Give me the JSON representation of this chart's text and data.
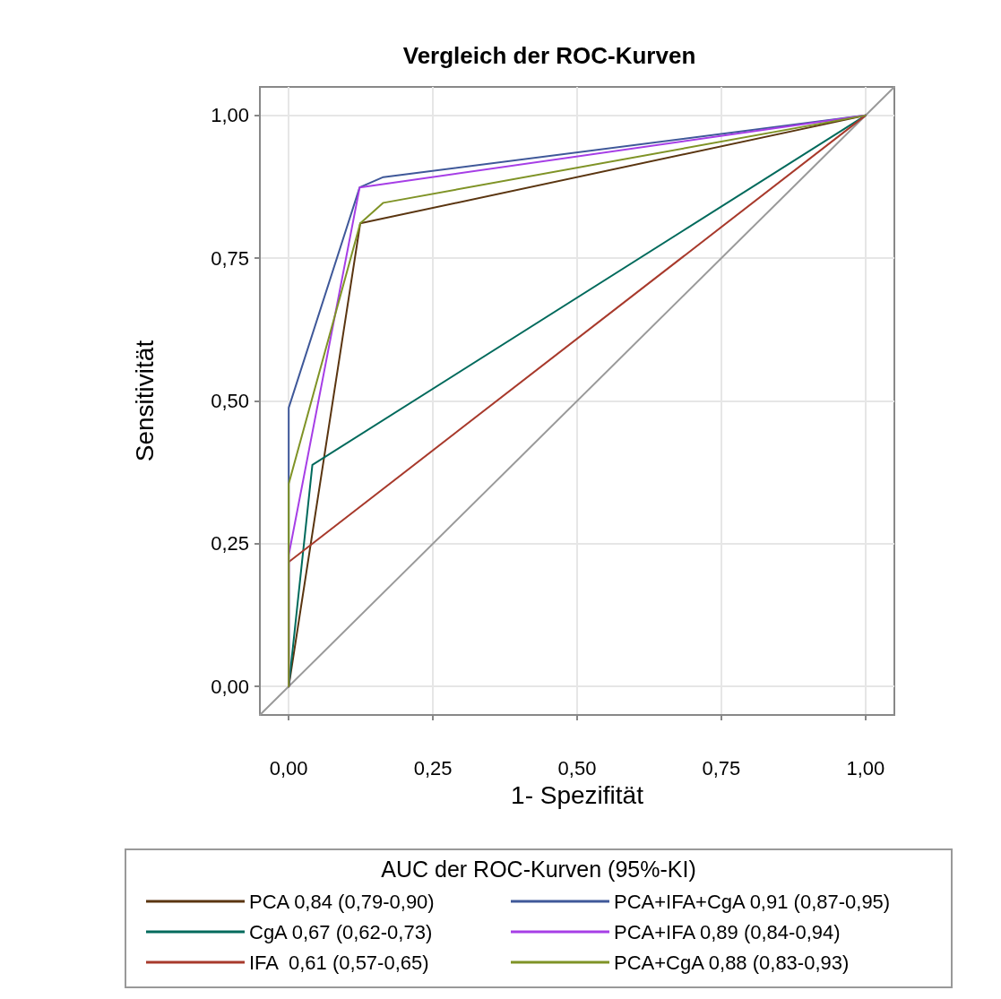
{
  "chart_data": {
    "type": "line",
    "title": "Vergleich der ROC-Kurven",
    "xlabel": "1- Spezifität",
    "ylabel": "Sensitivität",
    "legend_title": "AUC der ROC-Kurven (95%-KI)",
    "xlim": [
      -0.05,
      1.05
    ],
    "ylim": [
      -0.05,
      1.05
    ],
    "xticks": [
      {
        "value": 0,
        "label": "0,00"
      },
      {
        "value": 0.25,
        "label": "0,25"
      },
      {
        "value": 0.5,
        "label": "0,50"
      },
      {
        "value": 0.75,
        "label": "0,75"
      },
      {
        "value": 1,
        "label": "1,00"
      }
    ],
    "yticks": [
      {
        "value": 0,
        "label": "0,00"
      },
      {
        "value": 0.25,
        "label": "0,25"
      },
      {
        "value": 0.5,
        "label": "0,50"
      },
      {
        "value": 0.75,
        "label": "0,75"
      },
      {
        "value": 1,
        "label": "1,00"
      }
    ],
    "grid": true,
    "legend": "bottom",
    "marker": "none",
    "line_style": "solid",
    "series": [
      {
        "name": "PCA 0,84 (0,79-0,90)",
        "color": "#5a3510",
        "x": [
          0,
          0.124,
          1
        ],
        "values": [
          0,
          0.811,
          1
        ]
      },
      {
        "name": "CgA 0,67 (0,62-0,73)",
        "color": "#006a5c",
        "x": [
          0,
          0.041,
          1
        ],
        "values": [
          0,
          0.388,
          1
        ]
      },
      {
        "name": "IFA  0,61 (0,57-0,65)",
        "color": "#a83a2c",
        "x": [
          0,
          0,
          1
        ],
        "values": [
          0,
          0.218,
          1
        ]
      },
      {
        "name": "PCA+IFA+CgA 0,91 (0,87-0,95)",
        "color": "#3f5899",
        "x": [
          0,
          0,
          0.123,
          0.164,
          1
        ],
        "values": [
          0,
          0.488,
          0.874,
          0.892,
          1
        ]
      },
      {
        "name": "PCA+IFA 0,89 (0,84-0,94)",
        "color": "#a63ee6",
        "x": [
          0,
          0,
          0.123,
          1
        ],
        "values": [
          0,
          0.23,
          0.874,
          1
        ]
      },
      {
        "name": "PCA+CgA 0,88 (0,83-0,93)",
        "color": "#7f9326",
        "x": [
          0,
          0,
          0.124,
          0.164,
          1
        ],
        "values": [
          0,
          0.355,
          0.811,
          0.847,
          1
        ]
      },
      {
        "color": "#9a9a9a",
        "x": [
          -0.05,
          1.05
        ],
        "values": [
          -0.05,
          1.05
        ]
      }
    ]
  }
}
